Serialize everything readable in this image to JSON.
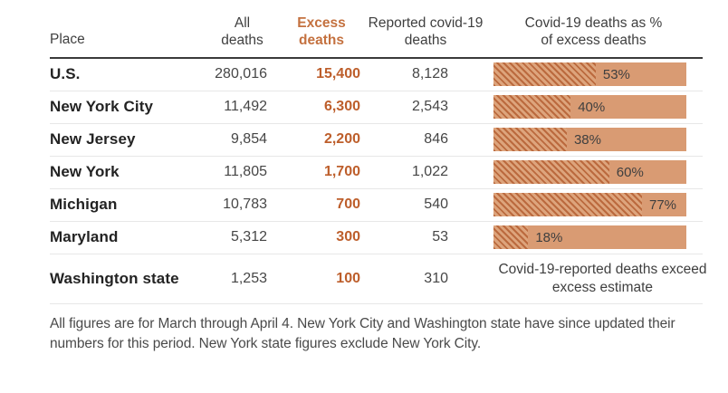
{
  "header": {
    "place": "Place",
    "all_deaths": "All deaths",
    "excess_deaths": "Excess deaths",
    "reported_deaths": "Reported covid-19 deaths",
    "pct_column": "Covid-19 deaths as % of excess deaths"
  },
  "rows": [
    {
      "place": "U.S.",
      "all": "280,016",
      "excess": "15,400",
      "reported": "8,128",
      "pct": 53,
      "pct_label": "53%"
    },
    {
      "place": "New York City",
      "all": "11,492",
      "excess": "6,300",
      "reported": "2,543",
      "pct": 40,
      "pct_label": "40%"
    },
    {
      "place": "New Jersey",
      "all": "9,854",
      "excess": "2,200",
      "reported": "846",
      "pct": 38,
      "pct_label": "38%"
    },
    {
      "place": "New York",
      "all": "11,805",
      "excess": "1,700",
      "reported": "1,022",
      "pct": 60,
      "pct_label": "60%"
    },
    {
      "place": "Michigan",
      "all": "10,783",
      "excess": "700",
      "reported": "540",
      "pct": 77,
      "pct_label": "77%"
    },
    {
      "place": "Maryland",
      "all": "5,312",
      "excess": "300",
      "reported": "53",
      "pct": 18,
      "pct_label": "18%"
    },
    {
      "place": "Washington state",
      "all": "1,253",
      "excess": "100",
      "reported": "310",
      "bar_note": "Covid-19-reported deaths exceed excess estimate"
    }
  ],
  "footnote": "All figures are for March through April 4. New York City and Washington state have since updated their numbers for this period. New York state figures exclude New York City.",
  "colors": {
    "accent-header": "#c4713f",
    "accent-number": "#bd5e2b",
    "bar-solid": "#d99b73",
    "bar-hatch-light": "#dda47c",
    "bar-hatch-dark": "#bb6a3e",
    "rule-dark": "#3a3a3a",
    "divider": "#e7e7e7",
    "text-dark": "#232323",
    "text-gray": "#464646"
  },
  "chart_data": {
    "type": "table",
    "title": "",
    "columns": [
      "Place",
      "All deaths",
      "Excess deaths",
      "Reported covid-19 deaths",
      "Covid-19 deaths as % of excess deaths"
    ],
    "rows": [
      {
        "place": "U.S.",
        "all_deaths": 280016,
        "excess_deaths": 15400,
        "reported_covid19_deaths": 8128,
        "covid19_pct_of_excess": 53
      },
      {
        "place": "New York City",
        "all_deaths": 11492,
        "excess_deaths": 6300,
        "reported_covid19_deaths": 2543,
        "covid19_pct_of_excess": 40
      },
      {
        "place": "New Jersey",
        "all_deaths": 9854,
        "excess_deaths": 2200,
        "reported_covid19_deaths": 846,
        "covid19_pct_of_excess": 38
      },
      {
        "place": "New York",
        "all_deaths": 11805,
        "excess_deaths": 1700,
        "reported_covid19_deaths": 1022,
        "covid19_pct_of_excess": 60
      },
      {
        "place": "Michigan",
        "all_deaths": 10783,
        "excess_deaths": 700,
        "reported_covid19_deaths": 540,
        "covid19_pct_of_excess": 77
      },
      {
        "place": "Maryland",
        "all_deaths": 5312,
        "excess_deaths": 300,
        "reported_covid19_deaths": 53,
        "covid19_pct_of_excess": 18
      },
      {
        "place": "Washington state",
        "all_deaths": 1253,
        "excess_deaths": 100,
        "reported_covid19_deaths": 310,
        "covid19_pct_of_excess": null,
        "note": "Covid-19-reported deaths exceed excess estimate"
      }
    ],
    "bar_style": "hatched portion = covid-19 share of excess deaths, solid = remainder",
    "footnote": "All figures are for March through April 4. New York City and Washington state have since updated their numbers for this period. New York state figures exclude New York City."
  }
}
